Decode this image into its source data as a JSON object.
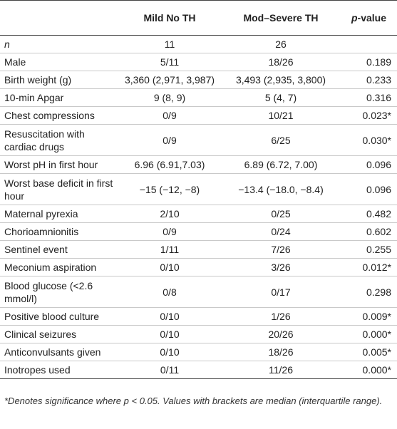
{
  "table": {
    "headers": [
      "",
      "Mild No TH",
      "Mod–Severe TH",
      "p-value"
    ],
    "rows": [
      {
        "label": "n",
        "mild": "11",
        "mod": "26",
        "p": "",
        "italic": true
      },
      {
        "label": "Male",
        "mild": "5/11",
        "mod": "18/26",
        "p": "0.189"
      },
      {
        "label": "Birth weight (g)",
        "mild": "3,360 (2,971, 3,987)",
        "mod": "3,493 (2,935, 3,800)",
        "p": "0.233"
      },
      {
        "label": "10-min Apgar",
        "mild": "9 (8, 9)",
        "mod": "5 (4, 7)",
        "p": "0.316"
      },
      {
        "label": "Chest compressions",
        "mild": "0/9",
        "mod": "10/21",
        "p": "0.023*"
      },
      {
        "label": "Resuscitation with cardiac drugs",
        "mild": "0/9",
        "mod": "6/25",
        "p": "0.030*"
      },
      {
        "label": "Worst pH in first hour",
        "mild": "6.96 (6.91,7.03)",
        "mod": "6.89 (6.72, 7.00)",
        "p": "0.096"
      },
      {
        "label": "Worst base deficit in first hour",
        "mild": "−15 (−12, −8)",
        "mod": "−13.4 (−18.0, −8.4)",
        "p": "0.096"
      },
      {
        "label": "Maternal pyrexia",
        "mild": "2/10",
        "mod": "0/25",
        "p": "0.482"
      },
      {
        "label": "Chorioamnionitis",
        "mild": "0/9",
        "mod": "0/24",
        "p": "0.602"
      },
      {
        "label": "Sentinel event",
        "mild": "1/11",
        "mod": "7/26",
        "p": "0.255"
      },
      {
        "label": "Meconium aspiration",
        "mild": "0/10",
        "mod": "3/26",
        "p": "0.012*"
      },
      {
        "label": "Blood glucose (<2.6 mmol/l)",
        "mild": "0/8",
        "mod": "0/17",
        "p": "0.298"
      },
      {
        "label": "Positive blood culture",
        "mild": "0/10",
        "mod": "1/26",
        "p": "0.009*"
      },
      {
        "label": "Clinical seizures",
        "mild": "0/10",
        "mod": "20/26",
        "p": "0.000*"
      },
      {
        "label": "Anticonvulsants given",
        "mild": "0/10",
        "mod": "18/26",
        "p": "0.005*"
      },
      {
        "label": "Inotropes used",
        "mild": "0/11",
        "mod": "11/26",
        "p": "0.000*"
      }
    ]
  },
  "footnote": "*Denotes significance where p < 0.05. Values with brackets are median (interquartile range)."
}
